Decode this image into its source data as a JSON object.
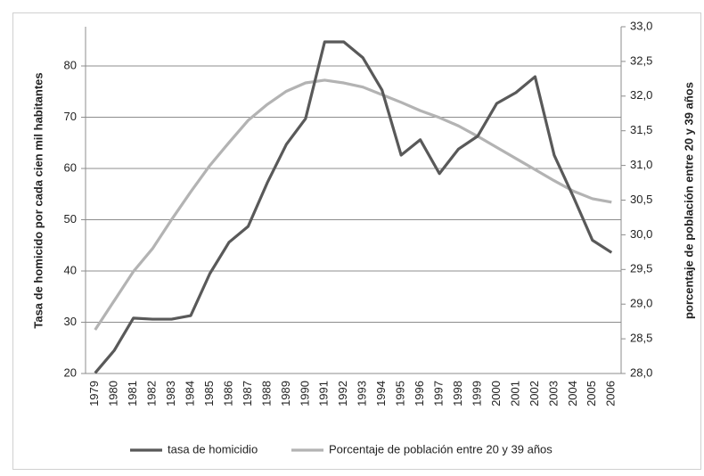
{
  "chart_data": {
    "type": "line",
    "y_label": "Tasa de homicido  por cada cien mil habitantes",
    "y2_label": "porcentaje de población entre 20 y 39 años",
    "categories": [
      "1979",
      "1980",
      "1981",
      "1982",
      "1983",
      "1984",
      "1985",
      "1986",
      "1987",
      "1988",
      "1989",
      "1990",
      "1991",
      "1992",
      "1993",
      "1994",
      "1995",
      "1996",
      "1997",
      "1998",
      "1999",
      "2000",
      "2001",
      "2002",
      "2003",
      "2004",
      "2005",
      "2006"
    ],
    "series": [
      {
        "name": "tasa de homicidio",
        "color": "#595959",
        "values": [
          20.1,
          24.5,
          30.8,
          30.6,
          30.6,
          31.3,
          39.5,
          45.6,
          48.7,
          57.2,
          64.7,
          69.7,
          84.7,
          84.7,
          81.6,
          75.3,
          62.6,
          65.6,
          59.0,
          63.8,
          66.3,
          72.7,
          74.8,
          77.9,
          62.6,
          54.5,
          46.0,
          43.6
        ]
      },
      {
        "name": "Porcentaje de población entre 20 y 39 años",
        "color": "#b3b3b3",
        "axis": "y2",
        "values": [
          28.63,
          29.05,
          29.47,
          29.8,
          30.22,
          30.62,
          31.0,
          31.33,
          31.65,
          31.88,
          32.07,
          32.19,
          32.23,
          32.19,
          32.13,
          32.02,
          31.91,
          31.79,
          31.69,
          31.57,
          31.42,
          31.26,
          31.1,
          30.94,
          30.78,
          30.63,
          30.52,
          30.47
        ]
      }
    ],
    "ylim": [
      20,
      87.65
    ],
    "yticks": [
      20,
      30,
      40,
      50,
      60,
      70,
      80
    ],
    "y2lim": [
      28,
      33
    ],
    "y2ticks": [
      {
        "value": 28,
        "label": "28,0"
      },
      {
        "value": 28.5,
        "label": "28,5"
      },
      {
        "value": 29,
        "label": "29,0"
      },
      {
        "value": 29.5,
        "label": "29,5"
      },
      {
        "value": 30,
        "label": "30,0"
      },
      {
        "value": 30.5,
        "label": "30,5"
      },
      {
        "value": 31,
        "label": "31,0"
      },
      {
        "value": 31.5,
        "label": "31,5"
      },
      {
        "value": 32,
        "label": "32,0"
      },
      {
        "value": 32.5,
        "label": "32,5"
      },
      {
        "value": 33,
        "label": "33,0"
      }
    ],
    "grid": true,
    "legend": "bottom"
  }
}
